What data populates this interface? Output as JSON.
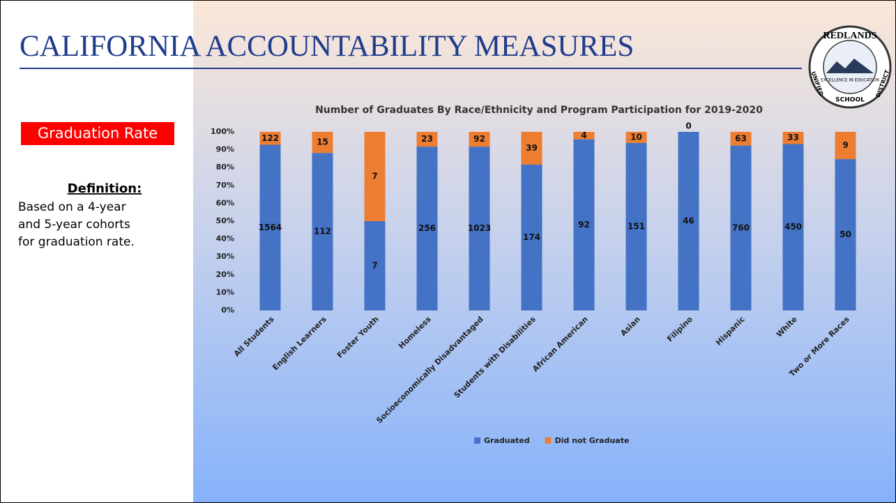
{
  "slide": {
    "title": "CALIFORNIA ACCOUNTABILITY MEASURES",
    "section": "Graduation Rate",
    "definition_heading": "Definition:",
    "definition_lines": [
      "Based on a 4-year",
      "and 5-year cohorts",
      "for  graduation rate."
    ]
  },
  "logo": {
    "top": "REDLANDS",
    "motto": "EXCELLENCE IN EDUCATION",
    "left": "UNIFIED",
    "bottom": "SCHOOL",
    "right": "DISTRICT"
  },
  "chart_data": {
    "type": "bar",
    "stacked": "percent",
    "title": "Number of Graduates By Race/Ethnicity and Program Participation for 2019-2020",
    "categories": [
      "All Students",
      "English Learners",
      "Foster Youth",
      "Homeless",
      "Socioeconomically Disadvantaged",
      "Students with Disabilities",
      "African American",
      "Asian",
      "Filipino",
      "Hispanic",
      "White",
      "Two or More Races"
    ],
    "series": [
      {
        "name": "Graduated",
        "color": "#4472c4",
        "values": [
          1564,
          112,
          7,
          256,
          1023,
          174,
          92,
          151,
          46,
          760,
          450,
          50
        ]
      },
      {
        "name": "Did not Graduate",
        "color": "#ed7d31",
        "values": [
          122,
          15,
          7,
          23,
          92,
          39,
          4,
          10,
          0,
          63,
          33,
          9
        ]
      }
    ],
    "ylim": [
      0,
      100
    ],
    "yticks": [
      {
        "value": 0,
        "label": "0%"
      },
      {
        "value": 10,
        "label": "10%"
      },
      {
        "value": 20,
        "label": "20%"
      },
      {
        "value": 30,
        "label": "30%"
      },
      {
        "value": 40,
        "label": "40%"
      },
      {
        "value": 50,
        "label": "50%"
      },
      {
        "value": 60,
        "label": "60%"
      },
      {
        "value": 70,
        "label": "70%"
      },
      {
        "value": 80,
        "label": "80%"
      },
      {
        "value": 90,
        "label": "90%"
      },
      {
        "value": 100,
        "label": "100%"
      }
    ],
    "grid": false,
    "legend": "bottom"
  }
}
